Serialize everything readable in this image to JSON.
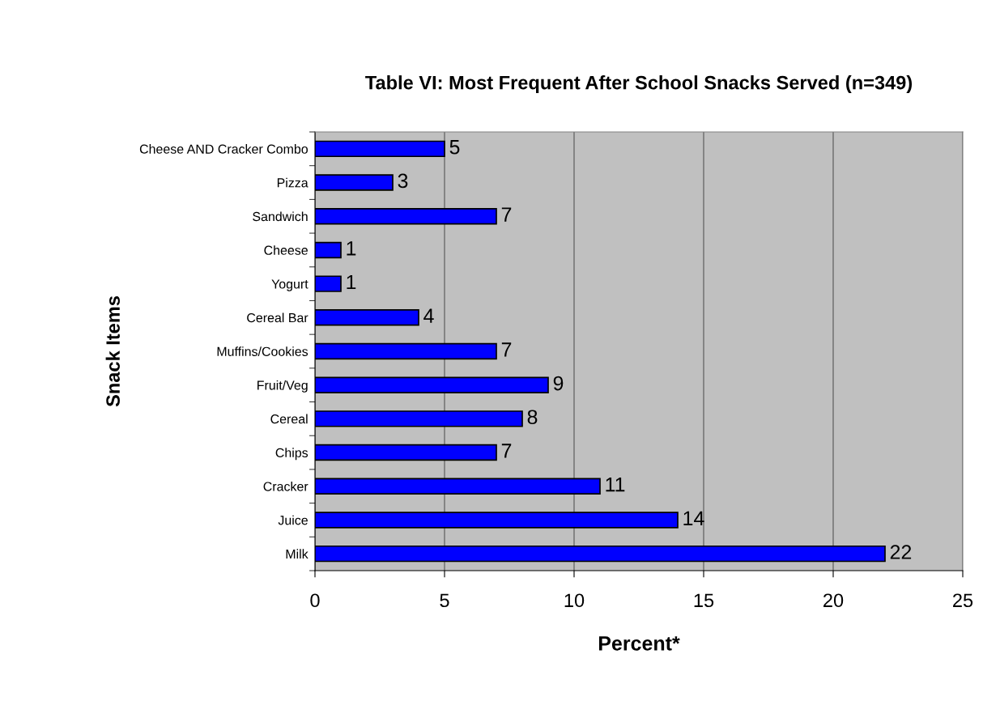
{
  "chart_data": {
    "type": "bar",
    "orientation": "horizontal",
    "title": "Table VI: Most Frequent After School Snacks Served (n=349)",
    "xlabel": "Percent*",
    "ylabel": "Snack Items",
    "categories": [
      "Cheese AND Cracker Combo",
      "Pizza",
      "Sandwich",
      "Cheese",
      "Yogurt",
      "Cereal Bar",
      "Muffins/Cookies",
      "Fruit/Veg",
      "Cereal",
      "Chips",
      "Cracker",
      "Juice",
      "Milk"
    ],
    "values": [
      5,
      3,
      7,
      1,
      1,
      4,
      7,
      9,
      8,
      7,
      11,
      14,
      22
    ],
    "color": "#0000ff",
    "xlim": [
      0,
      25
    ],
    "xticks": [
      0,
      5,
      10,
      15,
      20,
      25
    ],
    "grid": "x",
    "data_labels": true
  }
}
